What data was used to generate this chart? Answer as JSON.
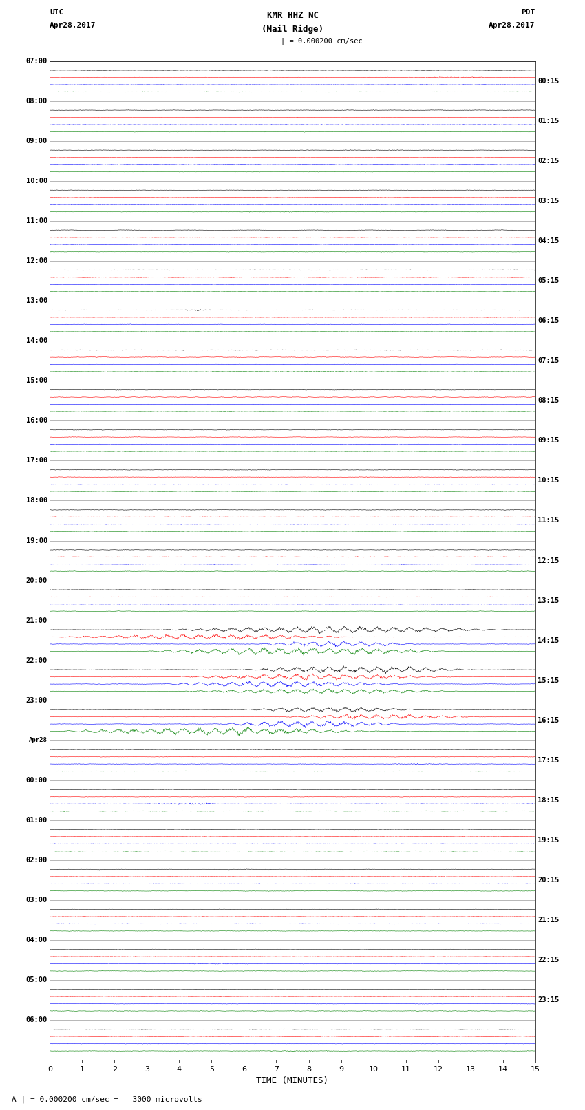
{
  "title_line1": "KMR HHZ NC",
  "title_line2": "(Mail Ridge)",
  "scale_label": "| = 0.000200 cm/sec",
  "utc_label": "UTC",
  "utc_date": "Apr28,2017",
  "pdt_label": "PDT",
  "pdt_date": "Apr28,2017",
  "bottom_label": "A | = 0.000200 cm/sec =   3000 microvolts",
  "xlabel": "TIME (MINUTES)",
  "left_times_utc": [
    "07:00",
    "08:00",
    "09:00",
    "10:00",
    "11:00",
    "12:00",
    "13:00",
    "14:00",
    "15:00",
    "16:00",
    "17:00",
    "18:00",
    "19:00",
    "20:00",
    "21:00",
    "22:00",
    "23:00",
    "Apr28",
    "00:00",
    "01:00",
    "02:00",
    "03:00",
    "04:00",
    "05:00",
    "06:00"
  ],
  "right_times_pdt": [
    "00:15",
    "01:15",
    "02:15",
    "03:15",
    "04:15",
    "05:15",
    "06:15",
    "07:15",
    "08:15",
    "09:15",
    "10:15",
    "11:15",
    "12:15",
    "13:15",
    "14:15",
    "15:15",
    "16:15",
    "17:15",
    "18:15",
    "19:15",
    "20:15",
    "21:15",
    "22:15",
    "23:15"
  ],
  "colors": [
    "black",
    "red",
    "blue",
    "green"
  ],
  "bg_color": "white",
  "trace_linewidth": 0.4,
  "fig_width": 8.5,
  "fig_height": 16.13,
  "dpi": 100,
  "n_rows": 25,
  "n_traces_per_row": 4,
  "minutes_per_row": 15,
  "amplitude_scale": 0.38,
  "large_event_rows": [
    14,
    15,
    16
  ]
}
